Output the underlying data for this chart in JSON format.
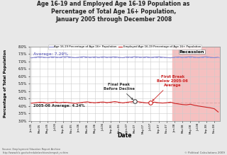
{
  "title": "Age 16-19 and Employed Age 16-19 Population as\nPercentage of Total Age 16+ Population,\nJanuary 2005 through December 2008",
  "xlabel": "Date",
  "ylabel": "Percentage of Total Population",
  "ylim": [
    3.0,
    8.0
  ],
  "yticks": [
    3.0,
    3.5,
    4.0,
    4.5,
    5.0,
    5.5,
    6.0,
    6.5,
    7.0,
    7.5,
    8.0
  ],
  "ytick_labels": [
    "3.0%",
    "3.5%",
    "4.0%",
    "4.5%",
    "5.0%",
    "5.5%",
    "6.0%",
    "6.5%",
    "7.0%",
    "7.5%",
    "8.0%"
  ],
  "bg_color": "#e8e8e8",
  "plot_bg_color": "#ffffff",
  "recession_color": "#f5c0c0",
  "recession_start_idx": 36,
  "blue_avg": 7.29,
  "red_avg": 4.24,
  "avg_label_blue": "Average: 7.29%",
  "avg_label_red": "2005-06 Average: 4.24%",
  "legend_blue": "Age 16-19 Percentage of Age 16+ Population",
  "legend_red": "Employed Age 16-19 Percentage of Age 16+ Population",
  "recession_label": "Recession",
  "annotation_peak": "Final Peak\nBefore Decline",
  "annotation_break": "First Break\nBelow 2005-06\nAverage",
  "source_text": "Source: Employment Situation Report Archive\nhttp://www.bls.gov/schedule/archives/empsit_nr.htm",
  "copyright_text": "© Political Calculations 2009",
  "blue_line": [
    7.24,
    7.28,
    7.31,
    7.28,
    7.26,
    7.3,
    7.29,
    7.27,
    7.31,
    7.32,
    7.28,
    7.25,
    7.28,
    7.32,
    7.29,
    7.28,
    7.3,
    7.27,
    7.31,
    7.28,
    7.29,
    7.31,
    7.27,
    7.25,
    7.3,
    7.28,
    7.32,
    7.29,
    7.28,
    7.3,
    7.27,
    7.29,
    7.31,
    7.28,
    7.26,
    7.24,
    7.28,
    7.3,
    7.27,
    7.29,
    7.31,
    7.28,
    7.26,
    7.29,
    7.31,
    7.27,
    7.25,
    7.28
  ],
  "red_line": [
    4.19,
    4.22,
    4.25,
    4.24,
    4.2,
    4.23,
    4.26,
    4.22,
    4.25,
    4.24,
    4.21,
    4.18,
    4.22,
    4.25,
    4.28,
    4.24,
    4.22,
    4.25,
    4.27,
    4.23,
    4.26,
    4.3,
    4.25,
    4.21,
    4.25,
    4.28,
    4.32,
    4.28,
    4.24,
    4.21,
    4.23,
    4.26,
    4.22,
    4.2,
    4.22,
    4.26,
    4.18,
    4.14,
    4.1,
    4.08,
    4.12,
    4.05,
    4.0,
    3.96,
    3.92,
    3.88,
    3.82,
    3.6
  ],
  "xtick_labels": [
    "Jan-05",
    "Mar-05",
    "May-05",
    "Jul-05",
    "Sep-05",
    "Nov-05",
    "Jan-06",
    "Mar-06",
    "May-06",
    "Jul-06",
    "Sep-06",
    "Nov-06",
    "Jan-07",
    "Mar-07",
    "May-07",
    "Jul-07",
    "Sep-07",
    "Nov-07",
    "Jan-08",
    "Mar-08",
    "May-08",
    "Jul-08",
    "Sep-08",
    "Nov-08"
  ],
  "xtick_positions": [
    0,
    2,
    4,
    6,
    8,
    10,
    12,
    14,
    16,
    18,
    20,
    22,
    24,
    26,
    28,
    30,
    32,
    34,
    36,
    38,
    40,
    42,
    44,
    46
  ],
  "peak_idx": 26,
  "break_idx": 30,
  "blue_color": "#8888cc",
  "red_color": "#cc2222",
  "blue_dash_color": "#aaaadd",
  "red_dash_color": "#ddaaaa"
}
